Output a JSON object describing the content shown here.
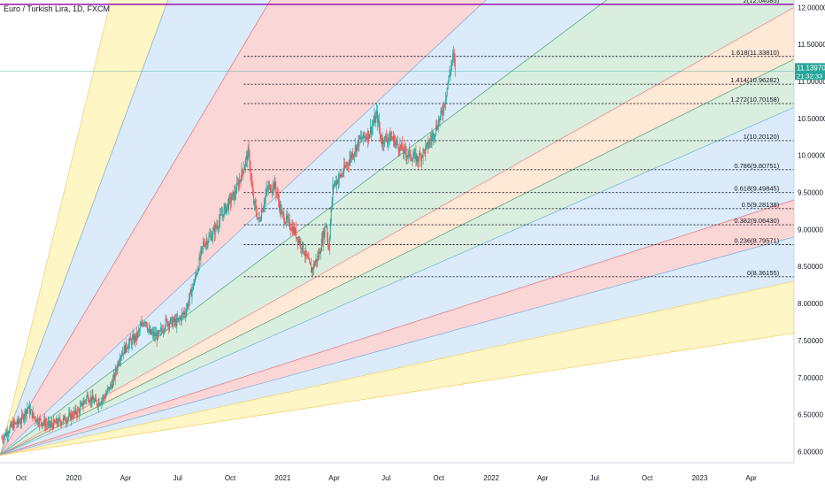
{
  "title": "Euro / Turkish Lira, 1D, FXCM",
  "price": {
    "value": "11.13970",
    "countdown": "21:32:33",
    "color": "#26a69a"
  },
  "colors": {
    "candle_up": "#26a69a",
    "candle_down": "#ef5350",
    "fib_top": "#9c27b0"
  },
  "chart_data": {
    "type": "candlestick",
    "ylim": [
      5.85,
      12.1
    ],
    "x_range": [
      "2019-08-25",
      "2023-06-15"
    ],
    "y_ticks": [
      "6.00000",
      "6.50000",
      "7.00000",
      "7.50000",
      "8.00000",
      "8.50000",
      "9.00000",
      "9.50000",
      "10.00000",
      "10.50000",
      "11.00000",
      "11.50000",
      "12.00000"
    ],
    "x_ticks": [
      {
        "label": "Oct",
        "date": "2019-10-01"
      },
      {
        "label": "2020",
        "date": "2020-01-01"
      },
      {
        "label": "Apr",
        "date": "2020-04-01"
      },
      {
        "label": "Jul",
        "date": "2020-07-01"
      },
      {
        "label": "Oct",
        "date": "2020-10-01"
      },
      {
        "label": "2021",
        "date": "2021-01-01"
      },
      {
        "label": "Apr",
        "date": "2021-04-01"
      },
      {
        "label": "Jul",
        "date": "2021-07-01"
      },
      {
        "label": "Oct",
        "date": "2021-10-01"
      },
      {
        "label": "2022",
        "date": "2022-01-01"
      },
      {
        "label": "Apr",
        "date": "2022-04-01"
      },
      {
        "label": "Jul",
        "date": "2022-07-01"
      },
      {
        "label": "Oct",
        "date": "2022-10-01"
      },
      {
        "label": "2023",
        "date": "2023-01-01"
      },
      {
        "label": "Apr",
        "date": "2023-04-01"
      }
    ],
    "price_path": [
      [
        "2019-08-28",
        6.18
      ],
      [
        "2019-09-15",
        6.35
      ],
      [
        "2019-10-01",
        6.42
      ],
      [
        "2019-10-12",
        6.6
      ],
      [
        "2019-10-25",
        6.45
      ],
      [
        "2019-11-20",
        6.35
      ],
      [
        "2019-12-20",
        6.45
      ],
      [
        "2020-01-10",
        6.55
      ],
      [
        "2020-01-25",
        6.75
      ],
      [
        "2020-02-10",
        6.65
      ],
      [
        "2020-02-25",
        6.75
      ],
      [
        "2020-03-10",
        6.95
      ],
      [
        "2020-03-22",
        7.3
      ],
      [
        "2020-04-05",
        7.45
      ],
      [
        "2020-04-20",
        7.55
      ],
      [
        "2020-05-05",
        7.8
      ],
      [
        "2020-05-12",
        7.6
      ],
      [
        "2020-05-28",
        7.55
      ],
      [
        "2020-06-10",
        7.75
      ],
      [
        "2020-06-30",
        7.75
      ],
      [
        "2020-07-15",
        7.9
      ],
      [
        "2020-08-01",
        8.35
      ],
      [
        "2020-08-15",
        8.8
      ],
      [
        "2020-09-01",
        8.95
      ],
      [
        "2020-09-20",
        9.25
      ],
      [
        "2020-10-10",
        9.5
      ],
      [
        "2020-10-25",
        9.85
      ],
      [
        "2020-11-02",
        10.05
      ],
      [
        "2020-11-10",
        9.4
      ],
      [
        "2020-11-20",
        9.1
      ],
      [
        "2020-12-05",
        9.55
      ],
      [
        "2020-12-18",
        9.6
      ],
      [
        "2020-12-30",
        9.2
      ],
      [
        "2021-01-20",
        9.0
      ],
      [
        "2021-02-05",
        8.75
      ],
      [
        "2021-02-20",
        8.45
      ],
      [
        "2021-03-05",
        8.65
      ],
      [
        "2021-03-18",
        9.1
      ],
      [
        "2021-03-22",
        8.7
      ],
      [
        "2021-03-30",
        9.6
      ],
      [
        "2021-04-15",
        9.75
      ],
      [
        "2021-05-01",
        10.0
      ],
      [
        "2021-05-15",
        10.2
      ],
      [
        "2021-06-01",
        10.3
      ],
      [
        "2021-06-15",
        10.55
      ],
      [
        "2021-06-22",
        10.2
      ],
      [
        "2021-07-10",
        10.25
      ],
      [
        "2021-08-01",
        10.05
      ],
      [
        "2021-08-25",
        9.95
      ],
      [
        "2021-09-10",
        10.1
      ],
      [
        "2021-09-25",
        10.35
      ],
      [
        "2021-10-08",
        10.6
      ],
      [
        "2021-10-20",
        11.1
      ],
      [
        "2021-10-26",
        11.35
      ],
      [
        "2021-10-31",
        11.14
      ]
    ],
    "fib_levels": [
      {
        "label": "2(12.04085)",
        "value": 12.04085,
        "color": "#9c27b0"
      },
      {
        "label": "1.618(11.33810)",
        "value": 11.3381,
        "color": "#131722"
      },
      {
        "label": "1.414(10.96282)",
        "value": 10.96282,
        "color": "#131722"
      },
      {
        "label": "1.272(10.70158)",
        "value": 10.70158,
        "color": "#131722"
      },
      {
        "label": "1(10.20120)",
        "value": 10.2012,
        "color": "#131722"
      },
      {
        "label": "0.786(9.80751)",
        "value": 9.80751,
        "color": "#131722"
      },
      {
        "label": "0.618(9.49845)",
        "value": 9.49845,
        "color": "#131722"
      },
      {
        "label": "0.5(9.28138)",
        "value": 9.28138,
        "color": "#131722"
      },
      {
        "label": "0.382(9.06430)",
        "value": 9.0643,
        "color": "#131722"
      },
      {
        "label": "0.236(8.79571)",
        "value": 8.79571,
        "color": "#131722"
      },
      {
        "label": "0(8.36155)",
        "value": 8.36155,
        "color": "#131722"
      }
    ],
    "fib_line_start": "2020-10-25",
    "fib_label_date": "2023-05-20",
    "fan": {
      "origin": [
        "2019-08-25",
        5.95
      ],
      "ray_end_values": [
        50,
        35,
        24,
        16,
        14.0,
        12.0,
        11.3,
        10.65,
        9.4,
        8.9,
        8.3,
        7.6
      ],
      "ray_end_date": "2023-06-15",
      "band_colors": [
        "#fff3b3",
        "#cfe4f8",
        "#f8c8c8",
        "#cfe4f8",
        "#cde8d4",
        "#fde0c8",
        "#cde8d4",
        "#cfe4f8",
        "#f8c8c8",
        "#cfe4f8",
        "#fff3b3"
      ],
      "ray_colors": [
        "#f5d26b",
        "#7fb3e8",
        "#ef7a7a",
        "#7fb3e8",
        "#5aa878",
        "#f28b82",
        "#5aa878",
        "#7fb3e8",
        "#ef7a7a",
        "#7fb3e8",
        "#f5d26b",
        "#f5d26b"
      ]
    }
  }
}
